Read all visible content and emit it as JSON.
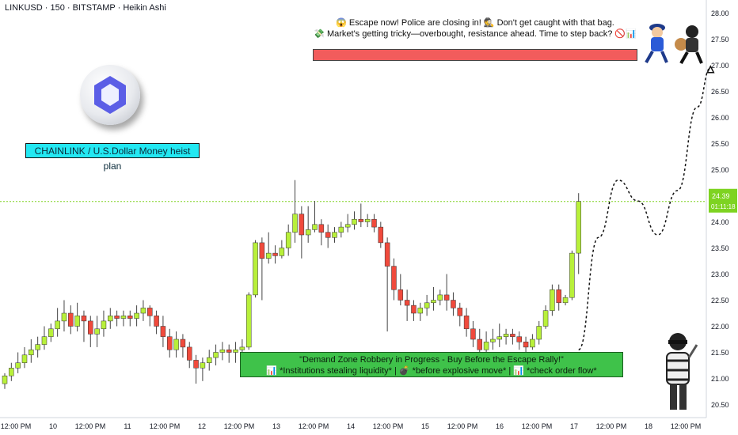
{
  "header": {
    "title": "LINKUSD · 150 · BITSTAMP · Heikin Ashi"
  },
  "labels": {
    "plan": "CHAINLINK / U.S.Dollar Money heist plan",
    "escape_line1": "😱 Escape now! Police are closing in! 🕵 Don't get caught with that bag.",
    "escape_line2": "💸 Market's getting tricky—overbought, resistance ahead. Time to step back? 🚫📊",
    "demand_line1": "\"Demand Zone Robbery in Progress - Buy Before the Escape Rally!\"",
    "demand_line2": "📊 *Institutions stealing liquidity* | 💣 *before explosive move* | 📊 *check order flow*"
  },
  "price_label": {
    "price": "24.39",
    "countdown": "01:11:18"
  },
  "colors": {
    "bull": "#b8f03a",
    "bear": "#f04a3c",
    "price_line": "#7ed321",
    "plan_bg": "#23e8f2",
    "demand_bg": "#3fc24a",
    "resistance_bg": "#f25c5c"
  },
  "icons": [
    "chainlink-coin-icon",
    "police-officer-icon",
    "robber-icon",
    "thief-figure-icon"
  ],
  "chart_data": {
    "type": "candlestick",
    "style": "Heikin Ashi",
    "timeframe": "150",
    "exchange": "BITSTAMP",
    "symbol": "LINKUSD",
    "ylim": [
      20.25,
      28.25
    ],
    "y_ticks": [
      20.5,
      21.0,
      21.5,
      22.0,
      22.5,
      23.0,
      23.5,
      24.0,
      24.5,
      25.0,
      25.5,
      26.0,
      26.5,
      27.0,
      27.5,
      28.0
    ],
    "x_ticks": [
      "12:00 PM",
      "10",
      "12:00 PM",
      "11",
      "12:00 PM",
      "12",
      "12:00 PM",
      "13",
      "12:00 PM",
      "14",
      "12:00 PM",
      "15",
      "12:00 PM",
      "16",
      "12:00 PM",
      "17",
      "12:00 PM",
      "18",
      "12:00 PM"
    ],
    "last_price": 24.39,
    "candles": [
      [
        20.9,
        21.05,
        20.8,
        21.1
      ],
      [
        21.05,
        21.2,
        20.95,
        21.3
      ],
      [
        21.2,
        21.3,
        21.1,
        21.5
      ],
      [
        21.3,
        21.45,
        21.2,
        21.6
      ],
      [
        21.45,
        21.55,
        21.3,
        21.75
      ],
      [
        21.55,
        21.65,
        21.4,
        21.8
      ],
      [
        21.65,
        21.8,
        21.55,
        22.0
      ],
      [
        21.8,
        21.95,
        21.7,
        22.05
      ],
      [
        21.95,
        22.1,
        21.8,
        22.35
      ],
      [
        22.1,
        22.25,
        21.9,
        22.5
      ],
      [
        22.25,
        22.0,
        21.85,
        22.4
      ],
      [
        22.0,
        22.2,
        21.9,
        22.45
      ],
      [
        22.2,
        22.1,
        21.7,
        22.3
      ],
      [
        22.1,
        21.85,
        21.6,
        22.2
      ],
      [
        21.85,
        21.95,
        21.6,
        22.2
      ],
      [
        21.95,
        22.1,
        21.8,
        22.3
      ],
      [
        22.1,
        22.2,
        21.95,
        22.35
      ],
      [
        22.2,
        22.15,
        22.0,
        22.3
      ],
      [
        22.15,
        22.2,
        22.0,
        22.3
      ],
      [
        22.2,
        22.15,
        22.0,
        22.3
      ],
      [
        22.15,
        22.25,
        22.0,
        22.4
      ],
      [
        22.25,
        22.35,
        22.1,
        22.5
      ],
      [
        22.35,
        22.2,
        22.0,
        22.4
      ],
      [
        22.2,
        22.0,
        21.85,
        22.3
      ],
      [
        22.0,
        21.8,
        21.6,
        22.2
      ],
      [
        21.8,
        21.55,
        21.4,
        21.95
      ],
      [
        21.55,
        21.75,
        21.4,
        21.9
      ],
      [
        21.75,
        21.6,
        21.4,
        21.85
      ],
      [
        21.6,
        21.35,
        21.2,
        21.7
      ],
      [
        21.35,
        21.2,
        20.9,
        21.45
      ],
      [
        21.2,
        21.3,
        20.95,
        21.4
      ],
      [
        21.3,
        21.4,
        21.15,
        21.55
      ],
      [
        21.4,
        21.5,
        21.25,
        21.65
      ],
      [
        21.5,
        21.55,
        21.35,
        21.7
      ],
      [
        21.55,
        21.5,
        21.3,
        21.65
      ],
      [
        21.5,
        21.55,
        21.3,
        21.7
      ],
      [
        21.55,
        21.6,
        21.45,
        21.75
      ],
      [
        21.6,
        22.6,
        21.55,
        22.65
      ],
      [
        22.6,
        23.6,
        22.55,
        23.65
      ],
      [
        23.6,
        23.3,
        22.5,
        23.7
      ],
      [
        23.3,
        23.4,
        23.2,
        23.8
      ],
      [
        23.4,
        23.35,
        23.2,
        23.55
      ],
      [
        23.35,
        23.5,
        23.3,
        23.65
      ],
      [
        23.5,
        23.8,
        23.35,
        23.95
      ],
      [
        23.8,
        24.15,
        23.6,
        24.8
      ],
      [
        24.15,
        23.75,
        23.3,
        24.3
      ],
      [
        23.75,
        23.85,
        23.6,
        24.3
      ],
      [
        23.85,
        23.95,
        23.8,
        24.4
      ],
      [
        23.95,
        23.8,
        23.55,
        24.05
      ],
      [
        23.8,
        23.7,
        23.5,
        23.95
      ],
      [
        23.7,
        23.8,
        23.6,
        23.9
      ],
      [
        23.8,
        23.9,
        23.7,
        24.0
      ],
      [
        23.9,
        23.95,
        23.8,
        24.15
      ],
      [
        23.95,
        24.05,
        23.85,
        24.2
      ],
      [
        24.05,
        24.0,
        23.9,
        24.35
      ],
      [
        24.0,
        24.05,
        23.9,
        24.15
      ],
      [
        24.05,
        23.9,
        23.8,
        24.15
      ],
      [
        23.9,
        23.6,
        23.5,
        24.0
      ],
      [
        23.6,
        23.15,
        21.9,
        23.7
      ],
      [
        23.15,
        22.7,
        22.5,
        23.3
      ],
      [
        22.7,
        22.5,
        22.4,
        23.0
      ],
      [
        22.5,
        22.4,
        22.1,
        22.7
      ],
      [
        22.4,
        22.25,
        22.1,
        22.5
      ],
      [
        22.25,
        22.35,
        22.1,
        22.45
      ],
      [
        22.35,
        22.45,
        22.2,
        22.6
      ],
      [
        22.45,
        22.5,
        22.3,
        22.75
      ],
      [
        22.5,
        22.6,
        22.4,
        22.7
      ],
      [
        22.6,
        22.5,
        22.3,
        23.0
      ],
      [
        22.5,
        22.35,
        22.2,
        22.65
      ],
      [
        22.35,
        22.2,
        22.0,
        22.45
      ],
      [
        22.2,
        21.95,
        21.8,
        22.35
      ],
      [
        21.95,
        21.75,
        21.6,
        22.1
      ],
      [
        21.75,
        21.55,
        21.4,
        21.95
      ],
      [
        21.55,
        21.7,
        21.45,
        21.9
      ],
      [
        21.7,
        21.75,
        21.55,
        21.95
      ],
      [
        21.75,
        21.8,
        21.6,
        22.05
      ],
      [
        21.8,
        21.85,
        21.65,
        21.95
      ],
      [
        21.85,
        21.8,
        21.65,
        21.95
      ],
      [
        21.8,
        21.7,
        21.55,
        21.9
      ],
      [
        21.7,
        21.6,
        21.45,
        21.8
      ],
      [
        21.6,
        21.75,
        21.55,
        21.85
      ],
      [
        21.75,
        22.0,
        21.65,
        22.1
      ],
      [
        22.0,
        22.3,
        21.95,
        22.4
      ],
      [
        22.3,
        22.7,
        22.2,
        22.8
      ],
      [
        22.7,
        22.45,
        22.3,
        22.8
      ],
      [
        22.45,
        22.55,
        22.4,
        22.6
      ],
      [
        22.55,
        23.4,
        22.5,
        23.45
      ],
      [
        23.4,
        24.39,
        23.0,
        24.55
      ]
    ],
    "projection": [
      {
        "bar": 87,
        "price": 21.55
      },
      {
        "bar": 90,
        "price": 23.7
      },
      {
        "bar": 93,
        "price": 24.8
      },
      {
        "bar": 96,
        "price": 24.4
      },
      {
        "bar": 99,
        "price": 23.75
      },
      {
        "bar": 102,
        "price": 24.6
      },
      {
        "bar": 105,
        "price": 26.2
      },
      {
        "bar": 107,
        "price": 26.95
      }
    ]
  }
}
